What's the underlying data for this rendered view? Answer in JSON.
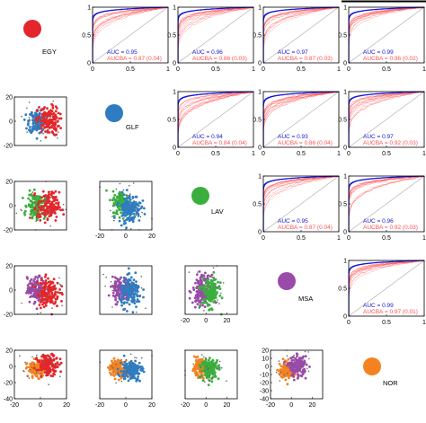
{
  "colors": {
    "EGY": "#e3262b",
    "GLF": "#2f7cc1",
    "LAV": "#3aaf3d",
    "MSA": "#9a4aa8",
    "NOR": "#f58220",
    "curve_main": "#1414d8",
    "curve_boot": "#ff5050",
    "chance": "#aaaaaa",
    "axis": "#000000"
  },
  "classes": [
    "EGY",
    "GLF",
    "LAV",
    "MSA",
    "NOR"
  ],
  "labels": {
    "auc_prefix": "AUC",
    "aucba_prefix": "AUCBA"
  },
  "chart_data": [
    {
      "type": "line",
      "panel": "ROC EGY vs GLF",
      "xlim": [
        0,
        1
      ],
      "ylim": [
        0,
        1
      ],
      "xticks": [
        "0",
        "0.5",
        "1"
      ],
      "yticks": [
        "0",
        "0.5",
        "1"
      ],
      "series": [
        {
          "values": []
        }
      ],
      "auc": "0.95",
      "aucba": "0.87 (0.04)"
    },
    {
      "type": "line",
      "panel": "ROC EGY vs LAV",
      "xlim": [
        0,
        1
      ],
      "ylim": [
        0,
        1
      ],
      "xticks": [
        "0",
        "0.5",
        "1"
      ],
      "yticks": [
        "0",
        "0.5",
        "1"
      ],
      "auc": "0.96",
      "aucba": "0.86 (0.03)"
    },
    {
      "type": "line",
      "panel": "ROC EGY vs MSA",
      "xlim": [
        0,
        1
      ],
      "ylim": [
        0,
        1
      ],
      "xticks": [
        "0",
        "0.5",
        "1"
      ],
      "yticks": [
        "0",
        "0.5",
        "1"
      ],
      "auc": "0.97",
      "aucba": "0.87 (0.03)"
    },
    {
      "type": "line",
      "panel": "ROC EGY vs NOR",
      "xlim": [
        0,
        1
      ],
      "ylim": [
        0,
        1
      ],
      "xticks": [
        "0",
        "0.5",
        "1"
      ],
      "yticks": [
        "0",
        "0.5",
        "1"
      ],
      "auc": "0.99",
      "aucba": "0.96 (0.02)"
    },
    {
      "type": "line",
      "panel": "ROC GLF vs LAV",
      "xlim": [
        0,
        1
      ],
      "ylim": [
        0,
        1
      ],
      "xticks": [
        "0",
        "0.5",
        "1"
      ],
      "yticks": [
        "0",
        "0.5",
        "1"
      ],
      "auc": "0.94",
      "aucba": "0.84 (0.04)"
    },
    {
      "type": "line",
      "panel": "ROC GLF vs MSA",
      "xlim": [
        0,
        1
      ],
      "ylim": [
        0,
        1
      ],
      "xticks": [
        "0",
        "0.5",
        "1"
      ],
      "yticks": [
        "0",
        "0.5",
        "1"
      ],
      "auc": "0.93",
      "aucba": "0.86 (0.04)"
    },
    {
      "type": "line",
      "panel": "ROC GLF vs NOR",
      "xlim": [
        0,
        1
      ],
      "ylim": [
        0,
        1
      ],
      "xticks": [
        "0",
        "0.5",
        "1"
      ],
      "yticks": [
        "0",
        "0.5",
        "1"
      ],
      "auc": "0.97",
      "aucba": "0.92 (0.03)"
    },
    {
      "type": "line",
      "panel": "ROC LAV vs MSA",
      "xlim": [
        0,
        1
      ],
      "ylim": [
        0,
        1
      ],
      "xticks": [
        "0",
        "0.5",
        "1"
      ],
      "yticks": [
        "0",
        "0.5",
        "1"
      ],
      "auc": "0.95",
      "aucba": "0.87 (0.04)"
    },
    {
      "type": "line",
      "panel": "ROC LAV vs NOR",
      "xlim": [
        0,
        1
      ],
      "ylim": [
        0,
        1
      ],
      "xticks": [
        "0",
        "0.5",
        "1"
      ],
      "yticks": [
        "0",
        "0.5",
        "1"
      ],
      "auc": "0.96",
      "aucba": "0.92 (0.03)"
    },
    {
      "type": "line",
      "panel": "ROC MSA vs NOR",
      "xlim": [
        0,
        1
      ],
      "ylim": [
        0,
        1
      ],
      "xticks": [
        "0",
        "0.5",
        "1"
      ],
      "yticks": [
        "0",
        "0.5",
        "1"
      ],
      "auc": "0.99",
      "aucba": "0.97 (0.01)"
    },
    {
      "type": "scatter",
      "panel": "GLF vs EGY",
      "xlim": [
        -20,
        20
      ],
      "ylim": [
        -20,
        20
      ],
      "xticks": [],
      "yticks": [
        "-20",
        "0",
        "20"
      ],
      "series": [
        {
          "class": "GLF",
          "center": [
            -2,
            0
          ],
          "spread": 5
        },
        {
          "class": "EGY",
          "center": [
            6,
            0
          ],
          "spread": 6
        }
      ]
    },
    {
      "type": "scatter",
      "panel": "LAV vs EGY",
      "xlim": [
        -20,
        20
      ],
      "ylim": [
        -20,
        20
      ],
      "xticks": [],
      "yticks": [
        "-20",
        "0",
        "20"
      ],
      "series": [
        {
          "class": "LAV",
          "center": [
            -3,
            0
          ],
          "spread": 5
        },
        {
          "class": "EGY",
          "center": [
            6,
            -1
          ],
          "spread": 6
        }
      ]
    },
    {
      "type": "scatter",
      "panel": "LAV vs GLF",
      "xlim": [
        -20,
        20
      ],
      "ylim": [
        -20,
        20
      ],
      "xticks": [
        "-20",
        "0",
        "20"
      ],
      "yticks": [],
      "series": [
        {
          "class": "LAV",
          "center": [
            -3,
            2
          ],
          "spread": 5
        },
        {
          "class": "GLF",
          "center": [
            3,
            -2
          ],
          "spread": 6
        }
      ]
    },
    {
      "type": "scatter",
      "panel": "MSA vs EGY",
      "xlim": [
        -20,
        20
      ],
      "ylim": [
        -20,
        20
      ],
      "xticks": [],
      "yticks": [
        "-20",
        "0",
        "20"
      ],
      "series": [
        {
          "class": "MSA",
          "center": [
            -3,
            0
          ],
          "spread": 5
        },
        {
          "class": "EGY",
          "center": [
            6,
            -2
          ],
          "spread": 6
        }
      ]
    },
    {
      "type": "scatter",
      "panel": "MSA vs GLF",
      "xlim": [
        -20,
        20
      ],
      "ylim": [
        -20,
        20
      ],
      "xticks": [],
      "yticks": [],
      "series": [
        {
          "class": "MSA",
          "center": [
            -3,
            0
          ],
          "spread": 5
        },
        {
          "class": "GLF",
          "center": [
            4,
            -2
          ],
          "spread": 6
        }
      ]
    },
    {
      "type": "scatter",
      "panel": "MSA vs LAV",
      "xlim": [
        -20,
        30
      ],
      "ylim": [
        -20,
        20
      ],
      "xticks": [
        "-20",
        "0",
        "20"
      ],
      "yticks": [],
      "series": [
        {
          "class": "MSA",
          "center": [
            -4,
            0
          ],
          "spread": 6
        },
        {
          "class": "LAV",
          "center": [
            4,
            -2
          ],
          "spread": 6
        }
      ]
    },
    {
      "type": "scatter",
      "panel": "NOR vs EGY",
      "xlim": [
        -20,
        20
      ],
      "ylim": [
        -40,
        20
      ],
      "xticks": [
        "-20",
        "0",
        "20"
      ],
      "yticks": [
        "-40",
        "-20",
        "0",
        "20"
      ],
      "series": [
        {
          "class": "NOR",
          "center": [
            -3,
            -3
          ],
          "spread": 5
        },
        {
          "class": "EGY",
          "center": [
            6,
            2
          ],
          "spread": 6
        }
      ]
    },
    {
      "type": "scatter",
      "panel": "NOR vs GLF",
      "xlim": [
        -20,
        20
      ],
      "ylim": [
        -40,
        20
      ],
      "xticks": [
        "-20",
        "0",
        "20"
      ],
      "yticks": [],
      "series": [
        {
          "class": "NOR",
          "center": [
            -6,
            -2
          ],
          "spread": 5
        },
        {
          "class": "GLF",
          "center": [
            4,
            -5
          ],
          "spread": 6
        }
      ]
    },
    {
      "type": "scatter",
      "panel": "NOR vs LAV",
      "xlim": [
        -20,
        30
      ],
      "ylim": [
        -40,
        20
      ],
      "xticks": [
        "-20",
        "0",
        "20"
      ],
      "yticks": [],
      "series": [
        {
          "class": "NOR",
          "center": [
            -6,
            -2
          ],
          "spread": 5
        },
        {
          "class": "LAV",
          "center": [
            4,
            -3
          ],
          "spread": 6
        }
      ]
    },
    {
      "type": "scatter",
      "panel": "NOR vs MSA",
      "xlim": [
        -20,
        30
      ],
      "ylim": [
        -40,
        20
      ],
      "xticks": [
        "-20",
        "0",
        "20"
      ],
      "yticks": [
        "-40",
        "-30",
        "-20",
        "-10",
        "0",
        "10",
        "20"
      ],
      "series": [
        {
          "class": "NOR",
          "center": [
            -4,
            -5
          ],
          "spread": 5
        },
        {
          "class": "MSA",
          "center": [
            6,
            0
          ],
          "spread": 6
        }
      ]
    }
  ]
}
